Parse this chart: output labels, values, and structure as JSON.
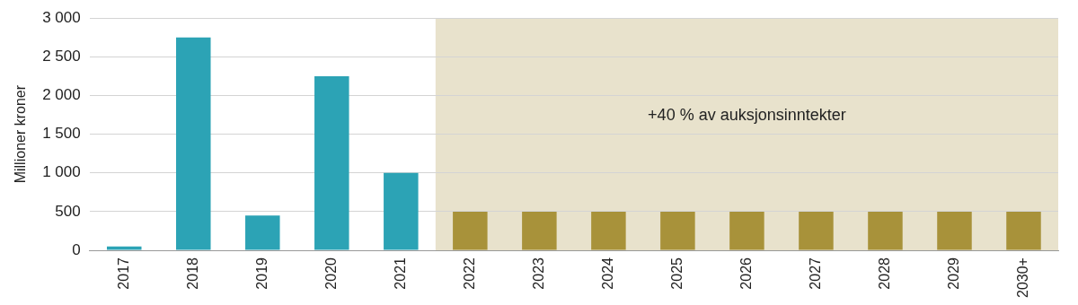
{
  "chart_data": {
    "type": "bar",
    "ylabel": "Millioner kroner",
    "categories": [
      "2017",
      "2018",
      "2019",
      "2020",
      "2021",
      "2022",
      "2023",
      "2024",
      "2025",
      "2026",
      "2027",
      "2028",
      "2029",
      "2030+"
    ],
    "values": [
      50,
      2750,
      450,
      2250,
      1000,
      500,
      500,
      500,
      500,
      500,
      500,
      500,
      500,
      500
    ],
    "colors": [
      "#2ca3b5",
      "#2ca3b5",
      "#2ca3b5",
      "#2ca3b5",
      "#2ca3b5",
      "#a8923a",
      "#a8923a",
      "#a8923a",
      "#a8923a",
      "#a8923a",
      "#a8923a",
      "#a8923a",
      "#a8923a",
      "#a8923a"
    ],
    "ylim": [
      0,
      3000
    ],
    "yticks": [
      0,
      {
        "value": 500,
        "label": "500"
      },
      {
        "value": 1000,
        "label": "1 000"
      },
      {
        "value": 1500,
        "label": "1 500"
      },
      {
        "value": 2000,
        "label": "2 000"
      },
      {
        "value": 2500,
        "label": "2 500"
      },
      {
        "value": 3000,
        "label": "3 000"
      }
    ],
    "grid": "y",
    "bands": [
      {
        "axis": "x",
        "from": "2022",
        "to": "2030+",
        "label": "+40 % av auksjonsinntekter",
        "color": "#e8e2cc"
      }
    ]
  }
}
